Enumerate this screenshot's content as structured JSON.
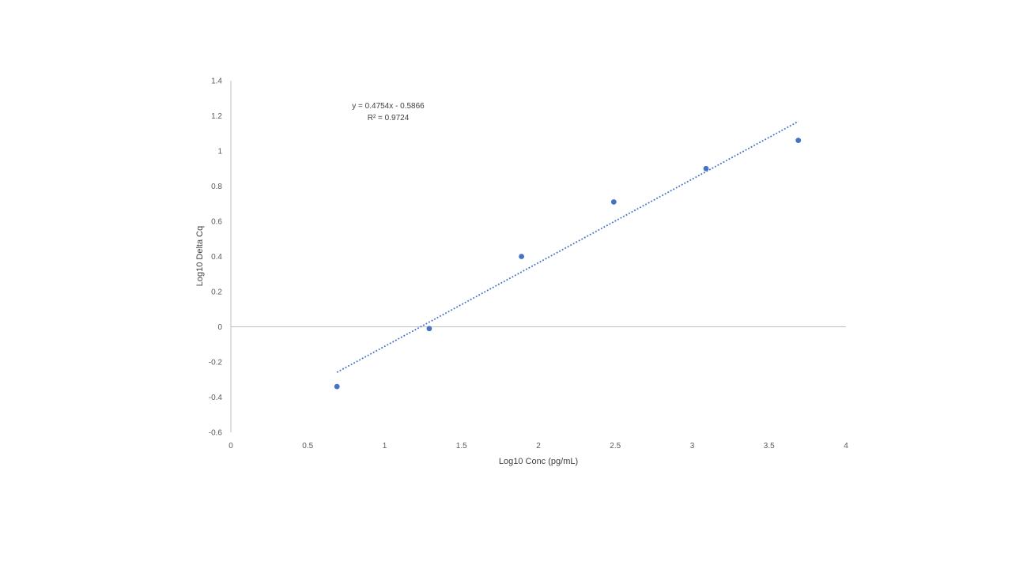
{
  "chart_data": {
    "type": "scatter",
    "title": "",
    "xlabel": "Log10 Conc (pg/mL)",
    "ylabel": "Log10 Delta Cq",
    "xlim": [
      0,
      4
    ],
    "ylim": [
      -0.6,
      1.4
    ],
    "x_ticks": [
      0,
      0.5,
      1,
      1.5,
      2,
      2.5,
      3,
      3.5,
      4
    ],
    "x_tick_labels": [
      "0",
      "0.5",
      "1",
      "1.5",
      "2",
      "2.5",
      "3",
      "3.5",
      "4"
    ],
    "y_ticks": [
      -0.6,
      -0.4,
      -0.2,
      0,
      0.2,
      0.4,
      0.6,
      0.8,
      1,
      1.2,
      1.4
    ],
    "y_tick_labels": [
      "-0.6",
      "-0.4",
      "-0.2",
      "0",
      "0.2",
      "0.4",
      "0.6",
      "0.8",
      "1",
      "1.2",
      "1.4"
    ],
    "grid": false,
    "legend": "none",
    "series": [
      {
        "x": [
          0.69,
          1.29,
          1.89,
          2.49,
          3.09,
          3.69
        ],
        "y": [
          -0.34,
          -0.01,
          0.4,
          0.71,
          0.9,
          1.06
        ],
        "color": "#4472c4"
      }
    ],
    "trendline": {
      "slope": 0.4754,
      "intercept": -0.5866,
      "x_range": [
        0.69,
        3.69
      ],
      "style": "dotted",
      "color": "#4472c4",
      "equation_label": "y = 0.4754x - 0.5866",
      "r2_label": "R² = 0.9724"
    },
    "axis_color": "#bfbfbf"
  }
}
